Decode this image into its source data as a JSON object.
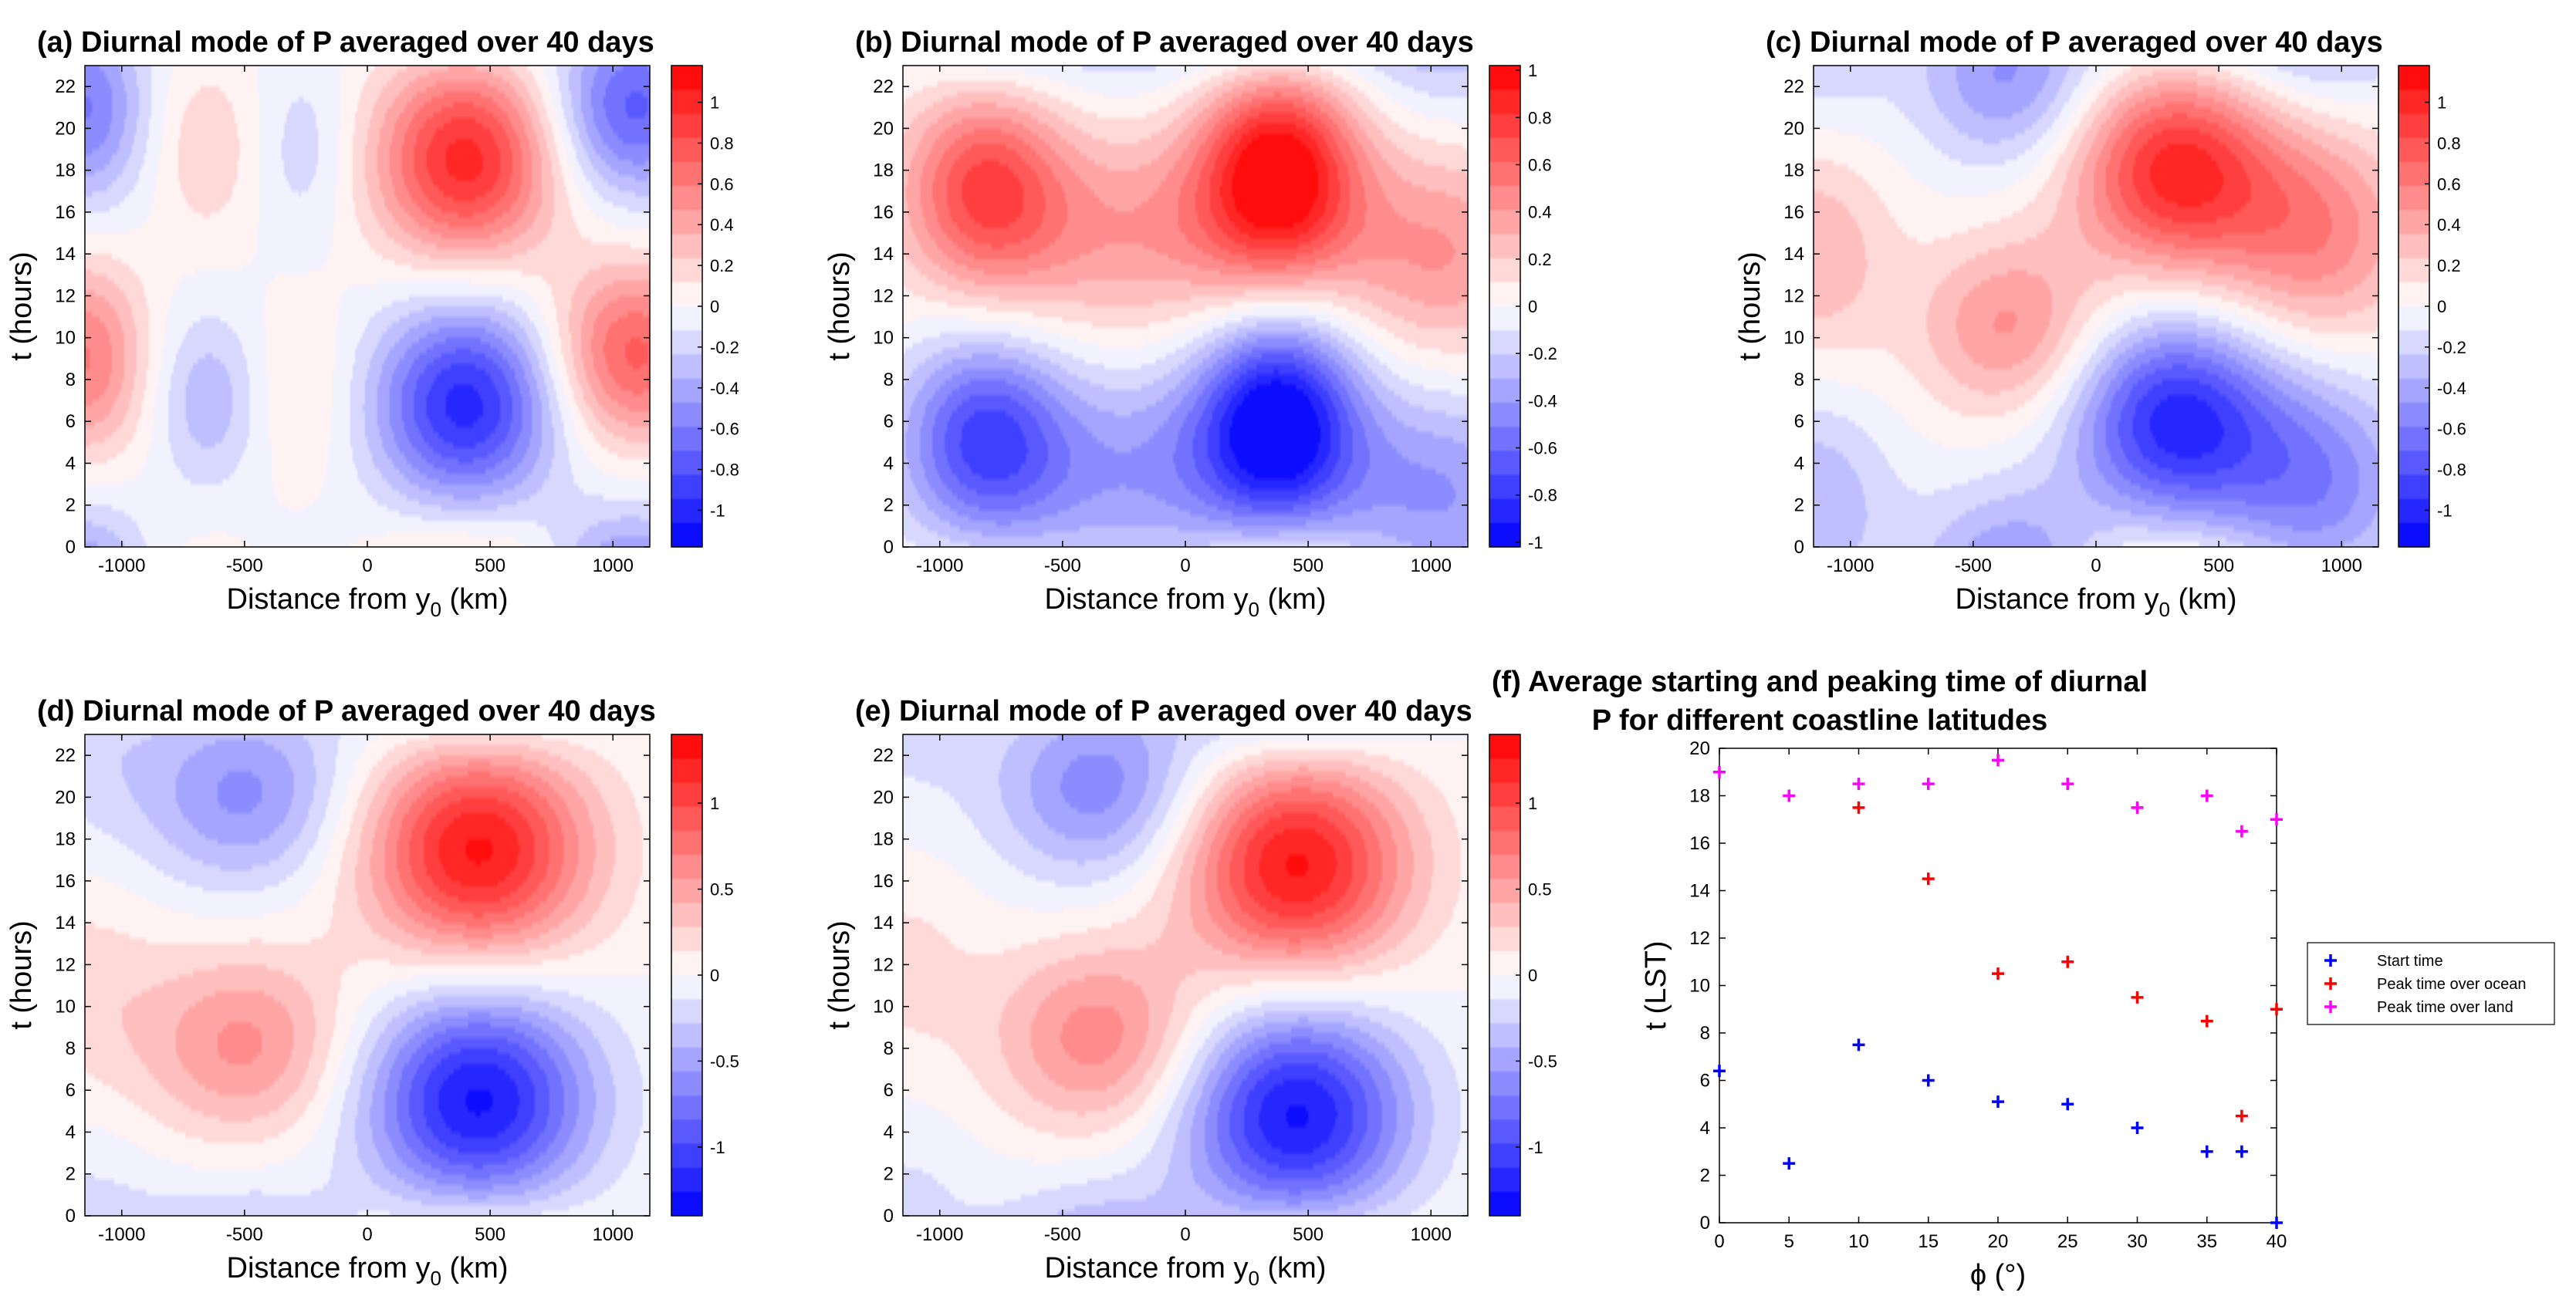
{
  "chart_data": [
    {
      "type": "heatmap",
      "id": "a",
      "title": "(a) Diurnal mode of P averaged over 40 days",
      "xlabel": "Distance from y",
      "xlabel_sub": "0",
      "xlabel_unit": " (km)",
      "ylabel": "t (hours)",
      "xlim": [
        -1150,
        1150
      ],
      "ylim": [
        0,
        23
      ],
      "xticks": [
        -1000,
        -500,
        0,
        500,
        1000
      ],
      "yticks": [
        0,
        2,
        4,
        6,
        8,
        10,
        12,
        14,
        16,
        18,
        20,
        22
      ],
      "colorbar": {
        "min": -1.18,
        "max": 1.18,
        "ticks": [
          "-1",
          "-0.8",
          "-0.6",
          "-0.4",
          "-0.2",
          "0",
          "0.2",
          "0.4",
          "0.6",
          "0.8",
          "1"
        ],
        "tick_values": [
          -1,
          -0.8,
          -0.6,
          -0.4,
          -0.2,
          0,
          0.2,
          0.4,
          0.6,
          0.8,
          1
        ]
      },
      "field_peaks": [
        {
          "x": 400,
          "t": 18.5,
          "v": 1.0,
          "sx": 260,
          "st": 3.4
        },
        {
          "x": 400,
          "t": 6.8,
          "v": -1.0,
          "sx": 260,
          "st": 3.4
        },
        {
          "x": 1080,
          "t": 9.2,
          "v": 0.75,
          "sx": 230,
          "st": 3.0
        },
        {
          "x": 1080,
          "t": 21.0,
          "v": -0.75,
          "sx": 230,
          "st": 3.0
        },
        {
          "x": -1150,
          "t": 9.0,
          "v": 0.6,
          "sx": 170,
          "st": 3.3
        },
        {
          "x": -1150,
          "t": 21.0,
          "v": -0.6,
          "sx": 170,
          "st": 3.3
        },
        {
          "x": -650,
          "t": 7.0,
          "v": -0.32,
          "sx": 150,
          "st": 3.0
        },
        {
          "x": -650,
          "t": 19.0,
          "v": 0.22,
          "sx": 150,
          "st": 3.0
        },
        {
          "x": -250,
          "t": 19.0,
          "v": -0.2,
          "sx": 150,
          "st": 3.2
        },
        {
          "x": -250,
          "t": 7.5,
          "v": 0.15,
          "sx": 150,
          "st": 3.2
        }
      ]
    },
    {
      "type": "heatmap",
      "id": "b",
      "title": "(b) Diurnal mode of P averaged over 40 days",
      "xlabel": "Distance from y",
      "xlabel_sub": "0",
      "xlabel_unit": " (km)",
      "ylabel": "t (hours)",
      "xlim": [
        -1150,
        1150
      ],
      "ylim": [
        0,
        23
      ],
      "xticks": [
        -1000,
        -500,
        0,
        500,
        1000
      ],
      "yticks": [
        0,
        2,
        4,
        6,
        8,
        10,
        12,
        14,
        16,
        18,
        20,
        22
      ],
      "colorbar": {
        "min": -1.02,
        "max": 1.02,
        "ticks": [
          "-1",
          "-0.8",
          "-0.6",
          "-0.4",
          "-0.2",
          "0",
          "0.2",
          "0.4",
          "0.6",
          "0.8",
          "1"
        ],
        "tick_values": [
          -1,
          -0.8,
          -0.6,
          -0.4,
          -0.2,
          0,
          0.2,
          0.4,
          0.6,
          0.8,
          1
        ]
      },
      "field_peaks": [
        {
          "x": 380,
          "t": 18.0,
          "v": 1.0,
          "sx": 230,
          "st": 3.6
        },
        {
          "x": 380,
          "t": 6.0,
          "v": -1.0,
          "sx": 230,
          "st": 3.6
        },
        {
          "x": -820,
          "t": 17.3,
          "v": 0.65,
          "sx": 230,
          "st": 3.4
        },
        {
          "x": -820,
          "t": 5.3,
          "v": -0.65,
          "sx": 230,
          "st": 3.4
        },
        {
          "x": -200,
          "t": 15.0,
          "v": 0.38,
          "sx": 500,
          "st": 3.5
        },
        {
          "x": -200,
          "t": 3.5,
          "v": -0.38,
          "sx": 500,
          "st": 3.5
        },
        {
          "x": 1050,
          "t": 14.0,
          "v": 0.4,
          "sx": 300,
          "st": 3.6
        },
        {
          "x": 1050,
          "t": 2.5,
          "v": -0.4,
          "sx": 300,
          "st": 3.6
        }
      ]
    },
    {
      "type": "heatmap",
      "id": "c",
      "title": "(c) Diurnal mode of P averaged over 40 days",
      "xlabel": "Distance from y",
      "xlabel_sub": "0",
      "xlabel_unit": " (km)",
      "ylabel": "t (hours)",
      "xlim": [
        -1150,
        1150
      ],
      "ylim": [
        0,
        23
      ],
      "xticks": [
        -1000,
        -500,
        0,
        500,
        1000
      ],
      "yticks": [
        0,
        2,
        4,
        6,
        8,
        10,
        12,
        14,
        16,
        18,
        20,
        22
      ],
      "colorbar": {
        "min": -1.18,
        "max": 1.18,
        "ticks": [
          "-1",
          "-0.8",
          "-0.6",
          "-0.4",
          "-0.2",
          "0",
          "0.2",
          "0.4",
          "0.6",
          "0.8",
          "1"
        ],
        "tick_values": [
          -1,
          -0.8,
          -0.6,
          -0.4,
          -0.2,
          0,
          0.2,
          0.4,
          0.6,
          0.8,
          1
        ]
      },
      "field_peaks": [
        {
          "x": 320,
          "t": 18.0,
          "v": 1.0,
          "sx": 290,
          "st": 3.4
        },
        {
          "x": 320,
          "t": 6.0,
          "v": -1.0,
          "sx": 290,
          "st": 3.4
        },
        {
          "x": -350,
          "t": 10.5,
          "v": 0.5,
          "sx": 260,
          "st": 3.0
        },
        {
          "x": -350,
          "t": 22.5,
          "v": -0.5,
          "sx": 260,
          "st": 3.0
        },
        {
          "x": -1150,
          "t": 14.0,
          "v": 0.35,
          "sx": 220,
          "st": 3.6
        },
        {
          "x": -1150,
          "t": 2.0,
          "v": -0.35,
          "sx": 220,
          "st": 3.6
        },
        {
          "x": 900,
          "t": 15.0,
          "v": 0.55,
          "sx": 280,
          "st": 3.8
        },
        {
          "x": 900,
          "t": 3.0,
          "v": -0.55,
          "sx": 280,
          "st": 3.8
        }
      ]
    },
    {
      "type": "heatmap",
      "id": "d",
      "title": "(d) Diurnal mode of P averaged over 40 days",
      "xlabel": "Distance from y",
      "xlabel_sub": "0",
      "xlabel_unit": " (km)",
      "ylabel": "t (hours)",
      "xlim": [
        -1150,
        1150
      ],
      "ylim": [
        0,
        23
      ],
      "xticks": [
        -1000,
        -500,
        0,
        500,
        1000
      ],
      "yticks": [
        0,
        2,
        4,
        6,
        8,
        10,
        12,
        14,
        16,
        18,
        20,
        22
      ],
      "colorbar": {
        "min": -1.4,
        "max": 1.4,
        "ticks": [
          "-1",
          "-0.5",
          "0",
          "0.5",
          "1"
        ],
        "tick_values": [
          -1,
          -0.5,
          0,
          0.5,
          1
        ]
      },
      "field_peaks": [
        {
          "x": 450,
          "t": 17.5,
          "v": 1.3,
          "sx": 320,
          "st": 3.8
        },
        {
          "x": 450,
          "t": 5.5,
          "v": -1.3,
          "sx": 320,
          "st": 3.8
        },
        {
          "x": -500,
          "t": 8.2,
          "v": 0.6,
          "sx": 300,
          "st": 3.2
        },
        {
          "x": -500,
          "t": 20.2,
          "v": -0.6,
          "sx": 300,
          "st": 3.2
        },
        {
          "x": -1150,
          "t": 11.0,
          "v": 0.2,
          "sx": 220,
          "st": 3.6
        },
        {
          "x": -1150,
          "t": 23.0,
          "v": -0.2,
          "sx": 220,
          "st": 3.6
        }
      ]
    },
    {
      "type": "heatmap",
      "id": "e",
      "title": "(e) Diurnal mode of P averaged over 40 days",
      "xlabel": "Distance from y",
      "xlabel_sub": "0",
      "xlabel_unit": " (km)",
      "ylabel": "t (hours)",
      "xlim": [
        -1150,
        1150
      ],
      "ylim": [
        0,
        23
      ],
      "xticks": [
        -1000,
        -500,
        0,
        500,
        1000
      ],
      "yticks": [
        0,
        2,
        4,
        6,
        8,
        10,
        12,
        14,
        16,
        18,
        20,
        22
      ],
      "colorbar": {
        "min": -1.4,
        "max": 1.4,
        "ticks": [
          "-1",
          "-0.5",
          "0",
          "0.5",
          "1"
        ],
        "tick_values": [
          -1,
          -0.5,
          0,
          0.5,
          1
        ]
      },
      "field_peaks": [
        {
          "x": 450,
          "t": 16.8,
          "v": 1.3,
          "sx": 320,
          "st": 3.8
        },
        {
          "x": 450,
          "t": 4.8,
          "v": -1.3,
          "sx": 320,
          "st": 3.8
        },
        {
          "x": -350,
          "t": 8.5,
          "v": 0.65,
          "sx": 300,
          "st": 3.2
        },
        {
          "x": -350,
          "t": 20.5,
          "v": -0.65,
          "sx": 300,
          "st": 3.2
        },
        {
          "x": -1150,
          "t": 12.0,
          "v": 0.18,
          "sx": 220,
          "st": 3.6
        },
        {
          "x": -1150,
          "t": 24.0,
          "v": -0.18,
          "sx": 220,
          "st": 3.6
        }
      ]
    },
    {
      "type": "scatter",
      "id": "f",
      "title": "(f) Average starting and peaking time of diurnal",
      "title_line2": "P for different coastline latitudes",
      "xlabel": "ϕ (°)",
      "ylabel": "t (LST)",
      "xlim": [
        0,
        40
      ],
      "ylim": [
        0,
        20
      ],
      "xticks": [
        0,
        5,
        10,
        15,
        20,
        25,
        30,
        35,
        40
      ],
      "yticks": [
        0,
        2,
        4,
        6,
        8,
        10,
        12,
        14,
        16,
        18,
        20
      ],
      "legend_position": "outside-right",
      "series": [
        {
          "name": "Start time",
          "color": "#0000ff",
          "x": [
            0,
            5,
            10,
            15,
            20,
            25,
            30,
            35,
            37.5,
            40
          ],
          "y": [
            6.4,
            2.5,
            7.5,
            6.0,
            5.1,
            5.0,
            4.0,
            3.0,
            3.0,
            0.0
          ]
        },
        {
          "name": "Peak time over ocean",
          "color": "#ff0000",
          "x": [
            10,
            15,
            20,
            25,
            30,
            35,
            37.5,
            40
          ],
          "y": [
            17.5,
            14.5,
            10.5,
            11.0,
            9.5,
            8.5,
            4.5,
            9.0
          ]
        },
        {
          "name": "Peak time over land",
          "color": "#ff00ff",
          "x": [
            0,
            5,
            10,
            15,
            20,
            25,
            30,
            35,
            37.5,
            40
          ],
          "y": [
            19.0,
            18.0,
            18.5,
            18.5,
            19.5,
            18.5,
            17.5,
            18.0,
            16.5,
            17.0
          ]
        }
      ]
    }
  ]
}
